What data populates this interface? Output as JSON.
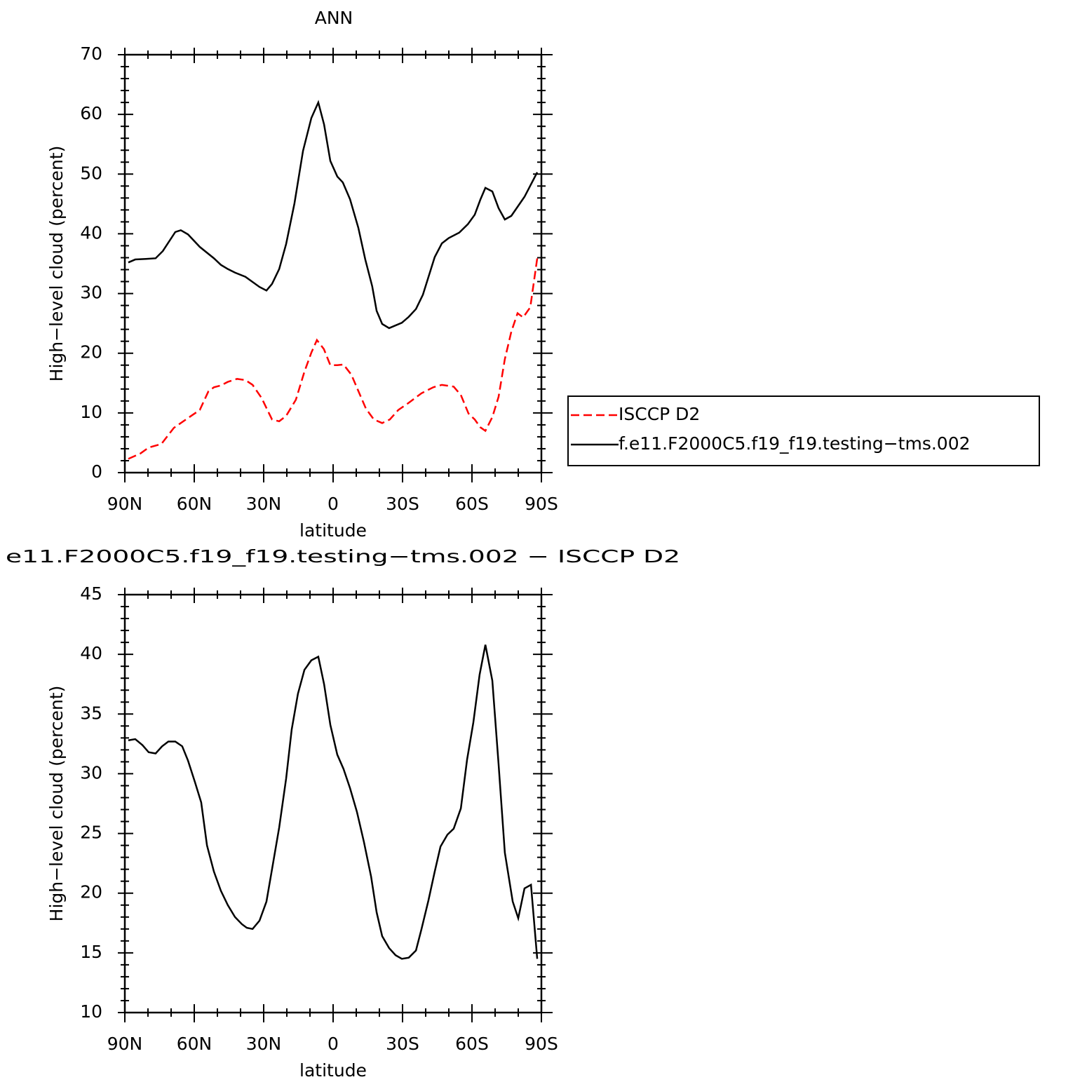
{
  "chart_data": [
    {
      "type": "line",
      "title": "ANN",
      "xlabel": "latitude",
      "ylabel": "High−level cloud (percent)",
      "xlim": [
        90,
        -90
      ],
      "xticks": [
        {
          "value": 90,
          "label": "90N"
        },
        {
          "value": 60,
          "label": "60N"
        },
        {
          "value": 30,
          "label": "30N"
        },
        0,
        {
          "value": -30,
          "label": "30S"
        },
        {
          "value": -60,
          "label": "60S"
        },
        {
          "value": -90,
          "label": "90S"
        }
      ],
      "ylim": [
        0,
        70
      ],
      "yticks": [
        0,
        10,
        20,
        30,
        40,
        50,
        60,
        70
      ],
      "legend": "right",
      "series": [
        {
          "name": "ISCCP D2",
          "color": "#ff0000",
          "dashed": true,
          "x": [
            88.5,
            83.3,
            79.7,
            74.2,
            68.8,
            63.6,
            57.6,
            53.9,
            51.5,
            48.5,
            45.5,
            41.5,
            37.9,
            34.8,
            30.9,
            26.4,
            23.3,
            20.3,
            16.1,
            12.4,
            9.4,
            7.0,
            4.0,
            1.2,
            -1.8,
            -4.5,
            -7.9,
            -11.2,
            -14.2,
            -17.6,
            -21.2,
            -24.5,
            -28.2,
            -32.7,
            -38.2,
            -43.3,
            -47.0,
            -52.1,
            -55.2,
            -58.5,
            -61.2,
            -63.6,
            -65.8,
            -68.8,
            -71.5,
            -74.2,
            -77.0,
            -79.7,
            -82.1,
            -85.2,
            -88.2
          ],
          "values": [
            2.3,
            3.2,
            4.2,
            4.8,
            7.5,
            8.9,
            10.5,
            13.6,
            14.3,
            14.6,
            15.2,
            15.7,
            15.5,
            14.7,
            12.5,
            8.9,
            8.6,
            9.5,
            12.2,
            16.9,
            20.1,
            22.2,
            20.7,
            18.0,
            18.0,
            18.1,
            16.4,
            13.4,
            10.7,
            8.9,
            8.3,
            8.9,
            10.5,
            11.7,
            13.3,
            14.3,
            14.7,
            14.4,
            13.0,
            9.9,
            8.9,
            7.6,
            7.0,
            9.3,
            12.7,
            19.0,
            23.6,
            26.7,
            26.0,
            27.7,
            35.9
          ]
        },
        {
          "name": "f.e11.F2000C5.f19_f19.testing−tms.002",
          "color": "#000000",
          "dashed": false,
          "x": [
            88.5,
            85.5,
            80.9,
            76.7,
            73.6,
            68.2,
            65.8,
            62.7,
            57.6,
            51.5,
            48.5,
            45.5,
            42.4,
            37.9,
            31.8,
            28.8,
            26.4,
            23.3,
            20.3,
            16.7,
            13.0,
            9.4,
            6.4,
            3.9,
            1.2,
            -1.8,
            -4.2,
            -7.3,
            -10.9,
            -13.9,
            -16.9,
            -18.8,
            -21.2,
            -24.2,
            -29.7,
            -32.7,
            -35.8,
            -38.8,
            -43.9,
            -47.0,
            -50.0,
            -54.5,
            -58.2,
            -61.2,
            -63.6,
            -65.8,
            -68.8,
            -71.5,
            -74.2,
            -77.0,
            -82.7,
            -88.2
          ],
          "values": [
            35.2,
            35.7,
            35.8,
            35.9,
            37.1,
            40.3,
            40.6,
            39.9,
            37.8,
            35.9,
            34.8,
            34.1,
            33.5,
            32.8,
            31.1,
            30.5,
            31.6,
            34.1,
            38.3,
            45.1,
            53.9,
            59.4,
            62.0,
            58.3,
            52.2,
            49.6,
            48.6,
            45.8,
            41.0,
            35.7,
            31.2,
            27.1,
            24.9,
            24.2,
            25.1,
            26.1,
            27.4,
            29.8,
            36.1,
            38.4,
            39.3,
            40.2,
            41.6,
            43.2,
            45.7,
            47.7,
            47.1,
            44.3,
            42.4,
            43.0,
            46.2,
            50.3
          ]
        }
      ]
    },
    {
      "type": "line",
      "title": "e11.F2000C5.f19_f19.testing−tms.002 − ISCCP D2",
      "xlabel": "latitude",
      "ylabel": "High−level cloud (percent)",
      "xlim": [
        90,
        -90
      ],
      "xticks": [
        {
          "value": 90,
          "label": "90N"
        },
        {
          "value": 60,
          "label": "60N"
        },
        {
          "value": 30,
          "label": "30N"
        },
        0,
        {
          "value": -30,
          "label": "30S"
        },
        {
          "value": -60,
          "label": "60S"
        },
        {
          "value": -90,
          "label": "90S"
        }
      ],
      "ylim": [
        10,
        45
      ],
      "yticks": [
        10,
        15,
        20,
        25,
        30,
        35,
        40,
        45
      ],
      "series": [
        {
          "color": "#000000",
          "dashed": false,
          "x": [
            88.5,
            85.5,
            82.4,
            79.7,
            76.7,
            73.9,
            71.2,
            68.2,
            65.2,
            62.7,
            59.7,
            57.0,
            54.5,
            51.5,
            48.5,
            45.5,
            42.4,
            39.4,
            37.3,
            34.8,
            31.8,
            28.8,
            26.4,
            23.3,
            20.3,
            17.9,
            15.2,
            12.4,
            9.4,
            6.4,
            3.9,
            1.2,
            -1.8,
            -4.5,
            -7.3,
            -10.3,
            -13.3,
            -16.4,
            -18.8,
            -21.2,
            -24.2,
            -27.0,
            -29.7,
            -32.7,
            -35.8,
            -38.2,
            -41.2,
            -43.9,
            -46.4,
            -49.4,
            -52.1,
            -55.2,
            -57.9,
            -60.6,
            -63.3,
            -65.8,
            -68.8,
            -71.5,
            -74.2,
            -77.6,
            -80.0,
            -82.7,
            -85.5,
            -88.2
          ],
          "values": [
            32.8,
            32.9,
            32.4,
            31.8,
            31.7,
            32.3,
            32.7,
            32.7,
            32.3,
            31.1,
            29.3,
            27.6,
            24.0,
            21.8,
            20.2,
            19.0,
            18.0,
            17.4,
            17.1,
            17.0,
            17.7,
            19.3,
            22.0,
            25.5,
            29.6,
            33.7,
            36.7,
            38.7,
            39.5,
            39.8,
            37.5,
            34.1,
            31.6,
            30.4,
            28.8,
            26.8,
            24.3,
            21.4,
            18.4,
            16.4,
            15.4,
            14.8,
            14.5,
            14.6,
            15.2,
            17.0,
            19.4,
            21.8,
            23.9,
            24.9,
            25.4,
            27.1,
            31.2,
            34.3,
            38.3,
            40.8,
            37.8,
            30.8,
            23.4,
            19.3,
            17.9,
            20.4,
            20.7,
            14.5
          ]
        }
      ]
    }
  ]
}
